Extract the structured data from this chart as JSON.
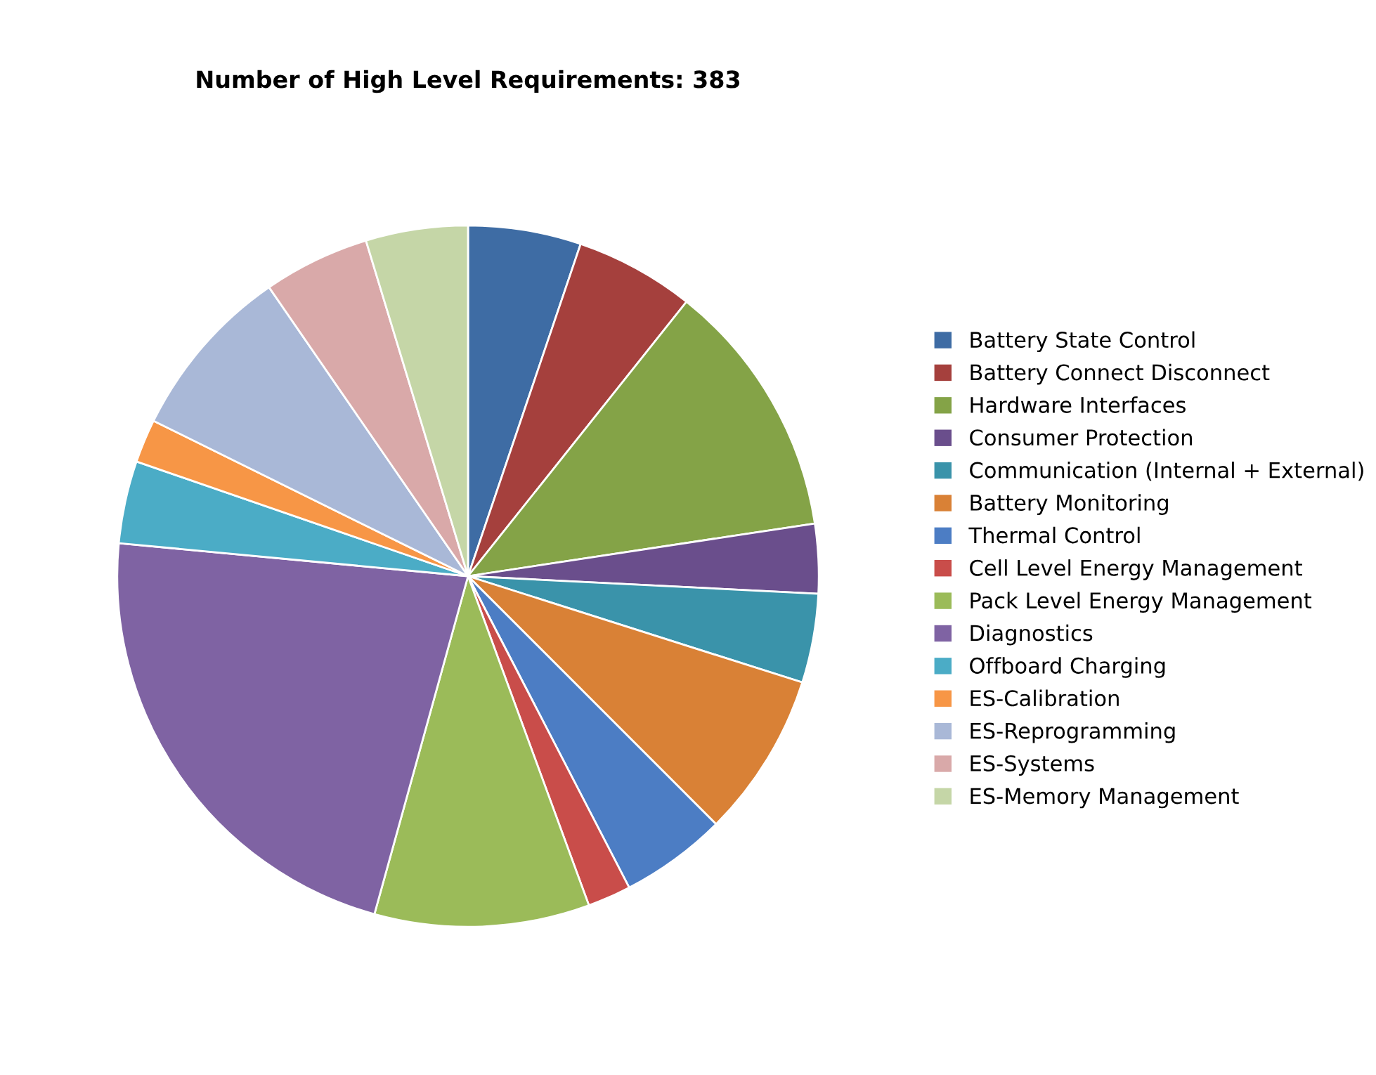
{
  "chart_data": {
    "type": "pie",
    "title": "Number of High Level Requirements: 383",
    "categories": [
      "Battery State Control",
      "Battery Connect Disconnect",
      "Hardware Interfaces",
      "Consumer Protection",
      "Communication (Internal + External)",
      "Battery Monitoring",
      "Thermal Control",
      "Cell Level Energy Management",
      "Pack Level Energy Management",
      "Diagnostics",
      "Offboard Charging",
      "ES-Calibration",
      "ES-Reprogramming",
      "ES-Systems",
      "ES-Memory Management"
    ],
    "values": [
      5.2,
      5.5,
      11.9,
      3.2,
      4.1,
      7.6,
      4.9,
      2.0,
      9.9,
      22.2,
      3.8,
      2.0,
      8.1,
      4.9,
      4.7
    ],
    "colors": [
      "#3e6ca4",
      "#a5403d",
      "#84a347",
      "#6a4e8c",
      "#3a93aa",
      "#d98136",
      "#4c7dc4",
      "#c94d4a",
      "#9bbb59",
      "#7f63a3",
      "#4bacc6",
      "#f79646",
      "#a9b8d7",
      "#d9a9a9",
      "#c5d6a7"
    ],
    "legend": "right"
  }
}
